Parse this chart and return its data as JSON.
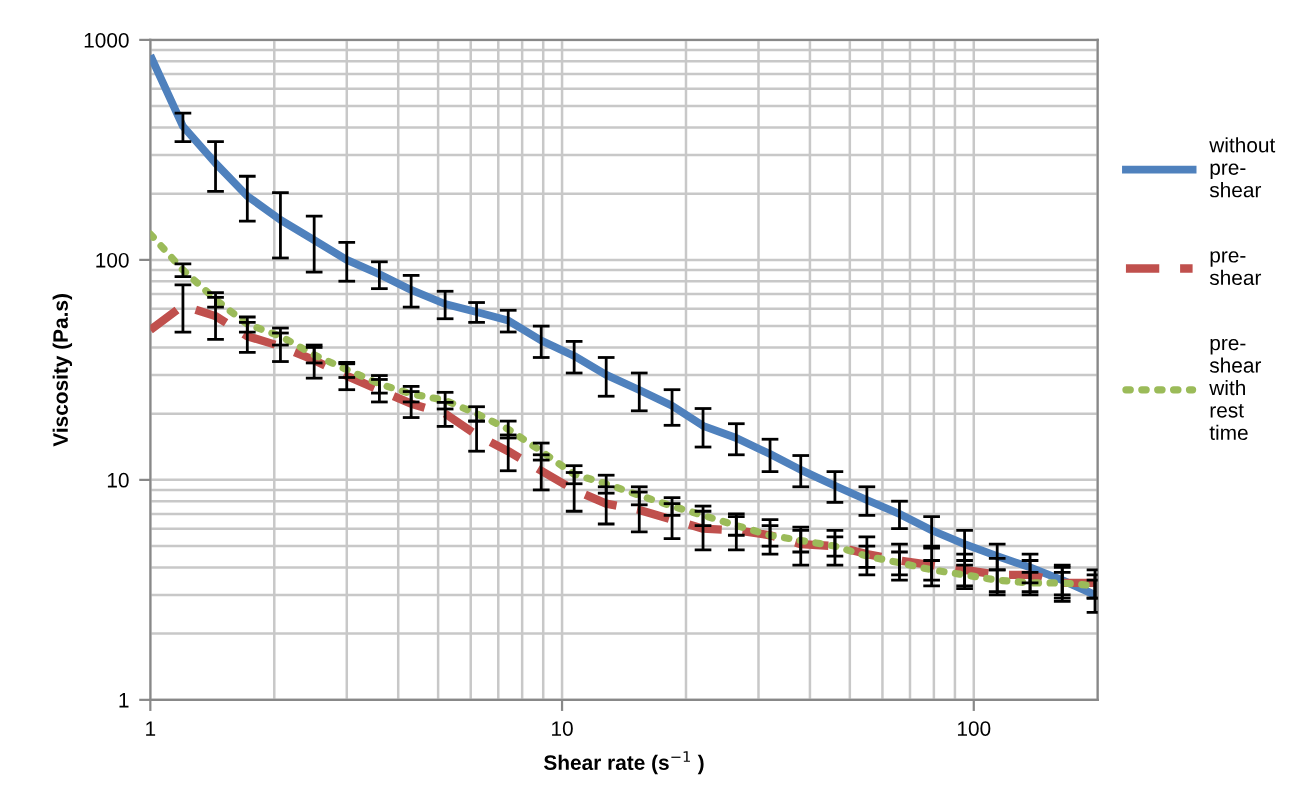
{
  "chart_data": {
    "type": "line",
    "xlabel": "Shear rate (s$^{−1}$ )",
    "ylabel": "Viscosity (Pa.s)",
    "x": [
      1,
      1.2,
      1.44,
      1.72,
      2.07,
      2.5,
      3,
      3.6,
      4.3,
      5.2,
      6.2,
      7.4,
      8.9,
      10.7,
      12.8,
      15.4,
      18.5,
      22,
      26.5,
      32,
      38,
      46,
      55,
      66,
      79,
      95,
      114,
      137,
      164,
      197
    ],
    "series": [
      {
        "name": "without pre-shear",
        "color": "#4f81bd",
        "line_style": "solid",
        "values": [
          850,
          405,
          275,
          195,
          152,
          123,
          100,
          86,
          73,
          63,
          58,
          53,
          43,
          36.6,
          30,
          25.6,
          21.7,
          17.6,
          15.5,
          13.1,
          11.1,
          9.4,
          8.1,
          7.0,
          5.9,
          5.1,
          4.5,
          4.0,
          3.5,
          3.0
        ],
        "errors": [
          null,
          60,
          70,
          45,
          50,
          35,
          20,
          12,
          12,
          9,
          6,
          6,
          7,
          6,
          6,
          5,
          4,
          3.5,
          2.5,
          2.2,
          1.8,
          1.5,
          1.2,
          1.0,
          0.9,
          0.8,
          0.6,
          0.6,
          0.6,
          0.5
        ]
      },
      {
        "name": "pre-shear",
        "color": "#c0504d",
        "line_style": "dashed",
        "values": [
          48,
          62,
          55.5,
          45,
          40.5,
          35,
          29.7,
          25.6,
          22.2,
          20,
          16,
          13.5,
          11,
          9.0,
          7.8,
          7.3,
          6.6,
          6.0,
          5.9,
          5.6,
          5.1,
          5.0,
          4.6,
          4.3,
          4.1,
          3.9,
          3.7,
          3.7,
          3.4,
          3.4
        ],
        "errors": [
          null,
          15,
          12,
          7,
          6,
          6,
          4,
          3,
          3,
          2.5,
          2.5,
          2.5,
          2,
          1.8,
          1.5,
          1.5,
          1.2,
          1.2,
          1.1,
          1.0,
          1.0,
          0.9,
          0.9,
          0.8,
          0.8,
          0.7,
          0.7,
          0.6,
          0.6,
          0.5
        ]
      },
      {
        "name": "pre-shear with rest time",
        "color": "#9bbb59",
        "line_style": "dotted",
        "values": [
          131,
          90,
          66,
          51,
          45,
          37,
          31.7,
          27.3,
          24.6,
          23,
          20,
          17,
          13.5,
          10.6,
          9.6,
          8.5,
          7.6,
          6.9,
          6.2,
          5.6,
          5.3,
          5.0,
          4.5,
          4.2,
          3.9,
          3.7,
          3.5,
          3.4,
          3.4,
          3.3
        ],
        "errors": [
          null,
          6,
          5,
          4,
          4,
          3,
          2.5,
          2.5,
          2,
          2,
          1.5,
          1.5,
          1.2,
          1.0,
          0.9,
          0.8,
          0.7,
          0.7,
          0.6,
          0.6,
          0.6,
          0.5,
          0.5,
          0.5,
          0.4,
          0.4,
          0.4,
          0.4,
          0.4,
          0.4
        ]
      }
    ],
    "log": "xy",
    "xlim": [
      1,
      200
    ],
    "xticks": [
      1,
      10,
      100
    ],
    "ylim": [
      1,
      1000
    ],
    "yticks": [
      1,
      10,
      100,
      1000
    ],
    "grid": true,
    "legend": "right",
    "marker": "none"
  }
}
